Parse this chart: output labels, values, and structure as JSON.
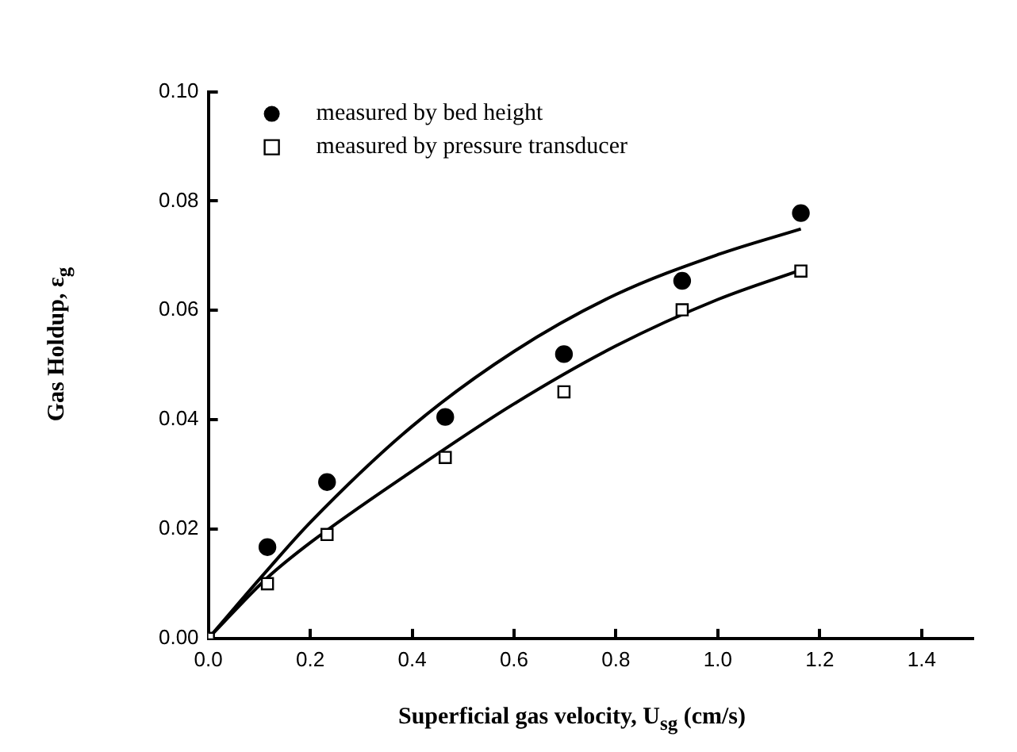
{
  "chart_data": {
    "type": "scatter",
    "xlabel": "Superficial gas velocity, U$_{sg}$ (cm/s)",
    "ylabel": "Gas Holdup, ε$_{g}$",
    "xlim": [
      0,
      1.5
    ],
    "xticks": [
      {
        "value": 0,
        "label": "0.0"
      },
      0.2,
      0.4,
      0.6,
      0.8,
      {
        "value": 1,
        "label": "1.0"
      },
      1.2,
      1.4
    ],
    "ylim": [
      0,
      0.1
    ],
    "yticks": [
      {
        "value": 0,
        "label": "0.00"
      },
      0.02,
      0.04,
      0.06,
      0.08,
      {
        "value": 0.1,
        "label": "0.10"
      }
    ],
    "grid": false,
    "legend": "top left",
    "series": [
      {
        "name": "measured by bed height",
        "marker": "circle",
        "color": "#000000",
        "x": [
          0.116,
          0.233,
          0.465,
          0.698,
          0.93,
          1.163
        ],
        "values": [
          0.0167,
          0.0286,
          0.0405,
          0.052,
          0.0654,
          0.0778
        ]
      },
      {
        "name": "measured by pressure transducer",
        "marker": "square",
        "color": "#000000",
        "x": [
          0,
          0.116,
          0.233,
          0.465,
          0.698,
          0.93,
          1.163
        ],
        "values": [
          0,
          0.01,
          0.019,
          0.0331,
          0.0451,
          0.0601,
          0.0672
        ]
      },
      {
        "type": "line",
        "marker": "none",
        "color": "#000000",
        "x": [
          0,
          0.116,
          0.2,
          0.4,
          0.6,
          0.8,
          1.0,
          1.163
        ],
        "values": [
          0,
          0.0125,
          0.0212,
          0.0388,
          0.0525,
          0.0629,
          0.0702,
          0.0749
        ]
      },
      {
        "type": "line",
        "marker": "none",
        "color": "#000000",
        "x": [
          0,
          0.116,
          0.2,
          0.4,
          0.6,
          0.8,
          1.0,
          1.163
        ],
        "values": [
          0,
          0.0111,
          0.0175,
          0.0306,
          0.0429,
          0.0535,
          0.062,
          0.0674
        ]
      }
    ]
  }
}
